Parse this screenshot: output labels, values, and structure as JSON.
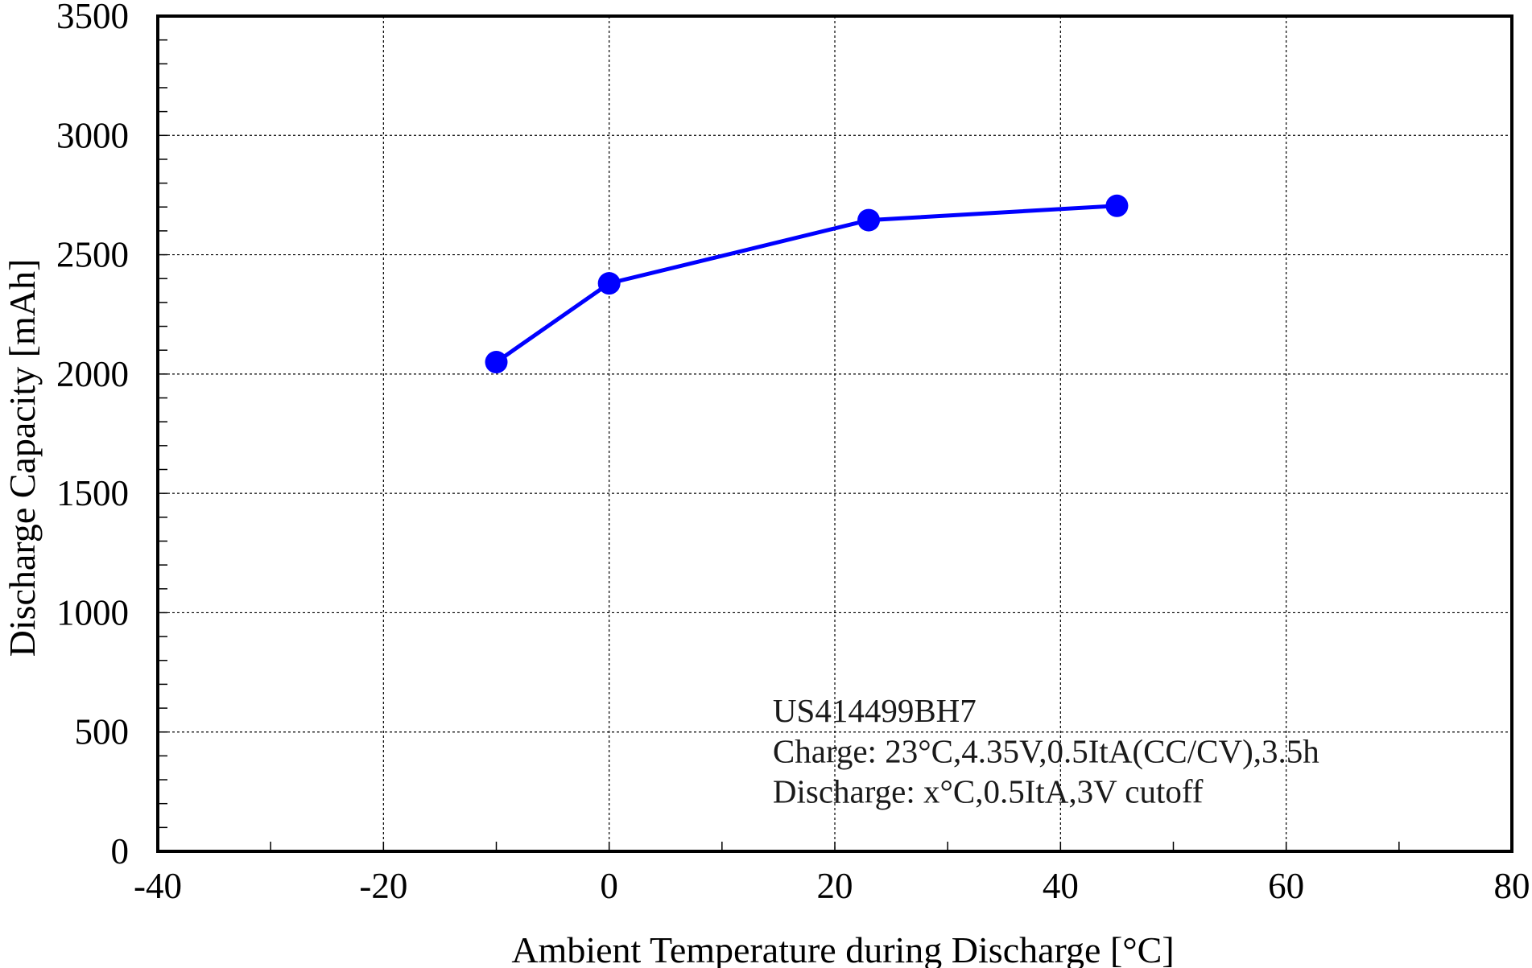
{
  "chart_data": {
    "type": "line",
    "xlabel": "Ambient Temperature during Discharge [°C]",
    "ylabel": "Discharge Capacity [mAh]",
    "xlim": [
      -40,
      80
    ],
    "ylim": [
      0,
      3500
    ],
    "x_ticks": [
      -40,
      -20,
      0,
      20,
      40,
      60,
      80
    ],
    "y_ticks": [
      0,
      500,
      1000,
      1500,
      2000,
      2500,
      3000,
      3500
    ],
    "x_tick_labels": [
      "-40",
      "-20",
      "0",
      "20",
      "40",
      "60",
      "80"
    ],
    "y_tick_labels": [
      "0",
      "500",
      "1000",
      "1500",
      "2000",
      "2500",
      "3000",
      "3500"
    ],
    "grid": true,
    "series": [
      {
        "color": "#0000ff",
        "x": [
          -10,
          0,
          23,
          45
        ],
        "y": [
          2050,
          2380,
          2645,
          2705
        ]
      }
    ],
    "annotations": [
      "US414499BH7",
      "Charge: 23°C,4.35V,0.5ItA(CC/CV),3.5h",
      "Discharge: x°C,0.5ItA,3V cutoff"
    ]
  }
}
